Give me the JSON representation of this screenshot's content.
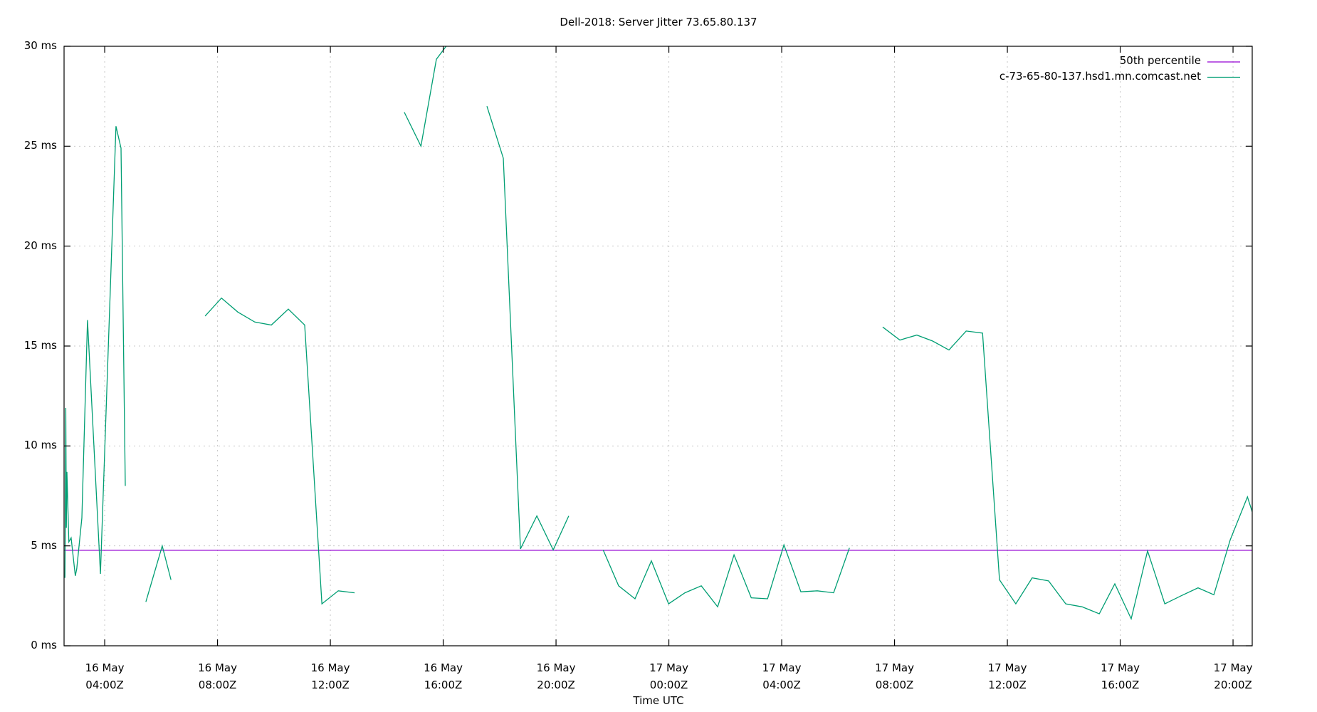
{
  "chart_data": {
    "type": "line",
    "title": "Dell-2018: Server Jitter 73.65.80.137",
    "xlabel": "Time UTC",
    "ylabel": "",
    "x_units": "hours since 16 May 00:00Z",
    "xlim": [
      2.56,
      44.68
    ],
    "ylim": [
      0,
      30
    ],
    "grid": true,
    "legend_position": "top-right",
    "y_ticks": [
      {
        "value": 0,
        "label": "0 ms"
      },
      {
        "value": 5,
        "label": "5 ms"
      },
      {
        "value": 10,
        "label": "10 ms"
      },
      {
        "value": 15,
        "label": "15 ms"
      },
      {
        "value": 20,
        "label": "20 ms"
      },
      {
        "value": 25,
        "label": "25 ms"
      },
      {
        "value": 30,
        "label": "30 ms"
      }
    ],
    "x_ticks": [
      {
        "value": 4,
        "date": "16 May",
        "time": "04:00Z"
      },
      {
        "value": 8,
        "date": "16 May",
        "time": "08:00Z"
      },
      {
        "value": 12,
        "date": "16 May",
        "time": "12:00Z"
      },
      {
        "value": 16,
        "date": "16 May",
        "time": "16:00Z"
      },
      {
        "value": 20,
        "date": "16 May",
        "time": "20:00Z"
      },
      {
        "value": 24,
        "date": "17 May",
        "time": "00:00Z"
      },
      {
        "value": 28,
        "date": "17 May",
        "time": "04:00Z"
      },
      {
        "value": 32,
        "date": "17 May",
        "time": "08:00Z"
      },
      {
        "value": 36,
        "date": "17 May",
        "time": "12:00Z"
      },
      {
        "value": 40,
        "date": "17 May",
        "time": "16:00Z"
      },
      {
        "value": 44,
        "date": "17 May",
        "time": "20:00Z"
      }
    ],
    "series": [
      {
        "name": "50th percentile",
        "color": "#9400d3",
        "type": "hline",
        "value": 4.78
      },
      {
        "name": "c-73-65-80-137.hsd1.mn.comcast.net",
        "color": "#009e73",
        "segments": [
          [
            [
              2.59,
              3.4
            ],
            [
              2.6,
              5.4
            ],
            [
              2.62,
              11.9
            ],
            [
              2.64,
              5.9
            ],
            [
              2.66,
              8.7
            ],
            [
              2.73,
              5.2
            ],
            [
              2.81,
              5.4
            ],
            [
              2.96,
              3.5
            ],
            [
              3.01,
              3.85
            ],
            [
              3.19,
              6.4
            ],
            [
              3.39,
              16.3
            ],
            [
              3.85,
              3.6
            ],
            [
              4.4,
              26.0
            ],
            [
              4.58,
              24.9
            ],
            [
              4.73,
              8.0
            ]
          ],
          [
            [
              5.46,
              2.2
            ],
            [
              6.04,
              5.0
            ],
            [
              6.35,
              3.3
            ]
          ],
          [
            [
              7.56,
              16.5
            ],
            [
              8.14,
              17.4
            ],
            [
              8.72,
              16.7
            ],
            [
              9.32,
              16.2
            ],
            [
              9.91,
              16.05
            ],
            [
              10.51,
              16.85
            ],
            [
              11.09,
              16.05
            ],
            [
              11.7,
              2.1
            ],
            [
              12.28,
              2.75
            ],
            [
              12.86,
              2.65
            ]
          ],
          [
            [
              14.62,
              26.7
            ],
            [
              15.21,
              25.0
            ],
            [
              15.76,
              29.35
            ],
            [
              16.37,
              30.5
            ]
          ],
          [
            [
              17.55,
              27.0
            ],
            [
              18.13,
              24.4
            ],
            [
              18.74,
              4.85
            ],
            [
              19.32,
              6.5
            ],
            [
              19.9,
              4.8
            ],
            [
              20.45,
              6.5
            ]
          ],
          [
            [
              21.67,
              4.8
            ],
            [
              22.22,
              3.0
            ],
            [
              22.8,
              2.35
            ],
            [
              23.38,
              4.25
            ],
            [
              23.99,
              2.1
            ],
            [
              24.57,
              2.65
            ],
            [
              25.15,
              3.0
            ],
            [
              25.73,
              1.95
            ],
            [
              26.31,
              4.55
            ],
            [
              26.92,
              2.4
            ],
            [
              27.5,
              2.35
            ],
            [
              28.08,
              5.05
            ],
            [
              28.68,
              2.7
            ],
            [
              29.26,
              2.75
            ],
            [
              29.84,
              2.65
            ],
            [
              30.4,
              4.9
            ]
          ],
          [
            [
              31.58,
              15.95
            ],
            [
              32.19,
              15.3
            ],
            [
              32.79,
              15.55
            ],
            [
              33.35,
              15.25
            ],
            [
              33.93,
              14.8
            ],
            [
              34.54,
              15.75
            ],
            [
              35.12,
              15.65
            ],
            [
              35.72,
              3.3
            ],
            [
              36.3,
              2.1
            ],
            [
              36.88,
              3.4
            ],
            [
              37.46,
              3.25
            ],
            [
              38.07,
              2.1
            ],
            [
              38.65,
              1.95
            ],
            [
              39.26,
              1.6
            ],
            [
              39.81,
              3.1
            ],
            [
              40.39,
              1.35
            ],
            [
              40.97,
              4.75
            ],
            [
              41.58,
              2.1
            ],
            [
              42.16,
              2.5
            ],
            [
              42.76,
              2.9
            ],
            [
              43.32,
              2.55
            ],
            [
              43.9,
              5.3
            ],
            [
              44.51,
              7.45
            ],
            [
              44.84,
              6.0
            ]
          ]
        ]
      }
    ]
  },
  "legend": {
    "items": [
      {
        "label": "50th percentile",
        "color": "#9400d3"
      },
      {
        "label": "c-73-65-80-137.hsd1.mn.comcast.net",
        "color": "#009e73"
      }
    ]
  }
}
